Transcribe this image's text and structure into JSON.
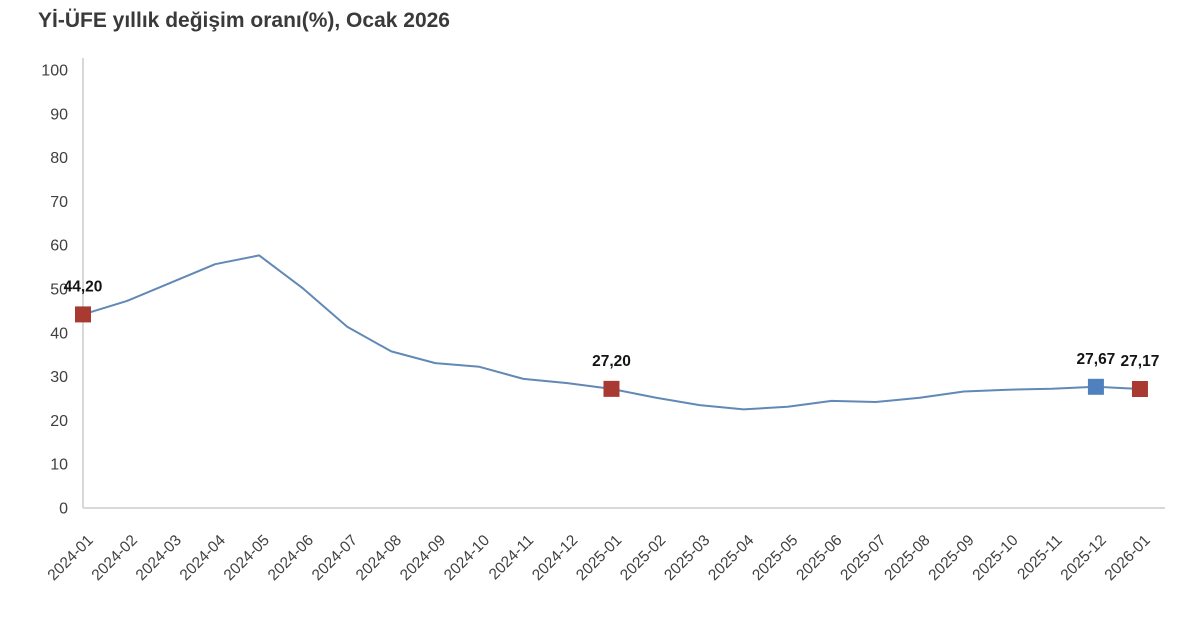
{
  "title": "Yİ-ÜFE yıllık değişim oranı(%), Ocak 2026",
  "colors": {
    "line": "#6189B6",
    "marker_red": "#A83A31",
    "marker_blue": "#4E81BD",
    "axis": "#D8D8D8",
    "title_text": "#3A3A3A",
    "tick_text": "#404040",
    "point_label_text": "#141414",
    "background": "#FFFFFF"
  },
  "chart_data": {
    "type": "line",
    "title": "Yİ-ÜFE yıllık değişim oranı(%), Ocak 2026",
    "xlabel": "",
    "ylabel": "",
    "ylim": [
      0,
      100
    ],
    "ytick_step": 10,
    "grid": false,
    "legend": null,
    "x": [
      "2024-01",
      "2024-02",
      "2024-03",
      "2024-04",
      "2024-05",
      "2024-06",
      "2024-07",
      "2024-08",
      "2024-09",
      "2024-10",
      "2024-11",
      "2024-12",
      "2025-01",
      "2025-02",
      "2025-03",
      "2025-04",
      "2025-05",
      "2025-06",
      "2025-07",
      "2025-08",
      "2025-09",
      "2025-10",
      "2025-11",
      "2025-12",
      "2026-01"
    ],
    "values": [
      44.2,
      47.29,
      51.47,
      55.66,
      57.68,
      50.09,
      41.37,
      35.75,
      33.09,
      32.24,
      29.47,
      28.52,
      27.2,
      25.21,
      23.5,
      22.5,
      23.13,
      24.45,
      24.19,
      25.16,
      26.59,
      27.0,
      27.22,
      27.67,
      27.17
    ],
    "annotations": [
      {
        "x": "2024-01",
        "index": 0,
        "label": "44,20",
        "marker": "square",
        "color_key": "marker_red"
      },
      {
        "x": "2025-01",
        "index": 12,
        "label": "27,20",
        "marker": "square",
        "color_key": "marker_red"
      },
      {
        "x": "2025-12",
        "index": 23,
        "label": "27,67",
        "marker": "square",
        "color_key": "marker_blue"
      },
      {
        "x": "2026-01",
        "index": 24,
        "label": "27,17",
        "marker": "square",
        "color_key": "marker_red"
      }
    ]
  }
}
